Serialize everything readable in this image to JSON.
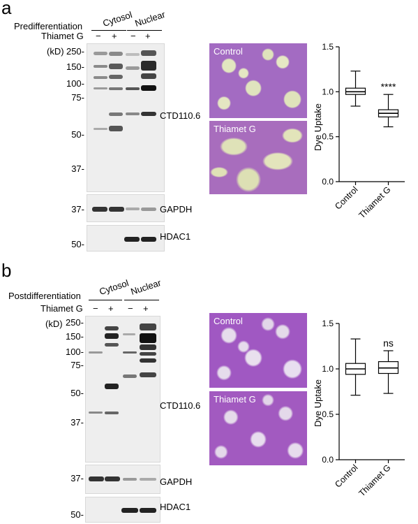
{
  "panels": [
    {
      "letter": "a",
      "condition": "Predifferentiation",
      "treatment": "Thiamet G",
      "fractions": [
        "Cytosol",
        "Nuclear"
      ],
      "lanes": [
        "−",
        "+",
        "−",
        "+"
      ],
      "mw_unit": "(kD)",
      "mw_main": [
        "250-",
        "150-",
        "100-",
        "75-",
        "50-",
        "37-"
      ],
      "mw_gapdh": "37-",
      "mw_hdac": "50-",
      "blot_labels": [
        "CTD110.6",
        "GAPDH",
        "HDAC1"
      ],
      "image_labels": [
        "Control",
        "Thiamet G"
      ],
      "significance": "****"
    },
    {
      "letter": "b",
      "condition": "Postdifferentiation",
      "treatment": "Thiamet G",
      "fractions": [
        "Cytosol",
        "Nuclear"
      ],
      "lanes": [
        "−",
        "+",
        "−",
        "+"
      ],
      "mw_unit": "(kD)",
      "mw_main": [
        "250-",
        "150-",
        "100-",
        "75-",
        "50-",
        "37-"
      ],
      "mw_gapdh": "37-",
      "mw_hdac": "50-",
      "blot_labels": [
        "CTD110.6",
        "GAPDH",
        "HDAC1"
      ],
      "image_labels": [
        "Control",
        "Thiamet G"
      ],
      "significance": "ns"
    }
  ],
  "chart_data": [
    {
      "type": "box",
      "ylabel": "Dye Uptake",
      "ylim": [
        0,
        1.5
      ],
      "yticks": [
        "0.0",
        "0.5",
        "1.0",
        "1.5"
      ],
      "categories": [
        "Control",
        "Thiamet G"
      ],
      "boxes": [
        {
          "min": 0.84,
          "q1": 0.97,
          "median": 1.0,
          "q3": 1.04,
          "max": 1.23
        },
        {
          "min": 0.61,
          "q1": 0.72,
          "median": 0.76,
          "q3": 0.8,
          "max": 0.97
        }
      ],
      "annotation": "****"
    },
    {
      "type": "box",
      "ylabel": "Dye Uptake",
      "ylim": [
        0,
        1.5
      ],
      "yticks": [
        "0.0",
        "0.5",
        "1.0",
        "1.5"
      ],
      "categories": [
        "Control",
        "Thiamet G"
      ],
      "boxes": [
        {
          "min": 0.71,
          "q1": 0.94,
          "median": 1.0,
          "q3": 1.06,
          "max": 1.33
        },
        {
          "min": 0.73,
          "q1": 0.95,
          "median": 1.01,
          "q3": 1.08,
          "max": 1.2
        }
      ],
      "annotation": "ns"
    }
  ]
}
